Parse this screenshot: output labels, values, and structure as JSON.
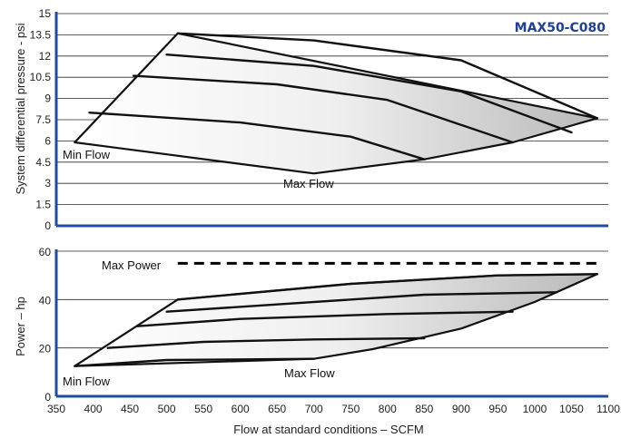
{
  "chart_data": [
    {
      "type": "area",
      "model_label": "MAX50-C080",
      "ylabel": "System differential pressure - psi",
      "ylim": [
        0,
        15
      ],
      "yticks": [
        "0",
        "1.5",
        "3",
        "4.5",
        "6",
        "7.5",
        "9",
        "10.5",
        "12",
        "13.5",
        "15"
      ],
      "xlim": [
        350,
        1100
      ],
      "grid": true,
      "envelope": {
        "boundary": [
          [
            375,
            5.9
          ],
          [
            515,
            13.6
          ],
          [
            1085,
            7.6
          ],
          [
            970,
            5.9
          ],
          [
            850,
            4.7
          ],
          [
            700,
            3.7
          ],
          [
            375,
            5.9
          ]
        ]
      },
      "series": [
        {
          "values": [
            [
              395,
              8.0
            ],
            [
              600,
              7.3
            ],
            [
              750,
              6.3
            ],
            [
              850,
              4.7
            ]
          ]
        },
        {
          "values": [
            [
              455,
              10.6
            ],
            [
              650,
              10.0
            ],
            [
              800,
              8.9
            ],
            [
              970,
              5.9
            ]
          ]
        },
        {
          "values": [
            [
              500,
              12.1
            ],
            [
              700,
              11.3
            ],
            [
              900,
              9.5
            ],
            [
              1050,
              6.6
            ]
          ]
        },
        {
          "values": [
            [
              515,
              13.6
            ],
            [
              700,
              13.1
            ],
            [
              900,
              11.7
            ],
            [
              1085,
              7.6
            ]
          ]
        }
      ],
      "annotations": {
        "min_flow": "Min Flow",
        "max_flow": "Max Flow"
      },
      "annotation_points": {
        "min_flow": [
          375,
          5.9
        ],
        "max_flow": [
          700,
          3.7
        ]
      }
    },
    {
      "type": "area",
      "ylabel": "Power – hp",
      "xlabel": "Flow at standard conditions – SCFM",
      "ylim": [
        0,
        60
      ],
      "yticks": [
        "0",
        "20",
        "40",
        "60"
      ],
      "xlim": [
        350,
        1100
      ],
      "xticks": [
        "350",
        "400",
        "450",
        "500",
        "550",
        "600",
        "650",
        "700",
        "750",
        "800",
        "850",
        "900",
        "950",
        "1000",
        "1050",
        "1100"
      ],
      "grid": true,
      "max_power": {
        "label": "Max Power",
        "value": 55,
        "x_range": [
          515,
          1085
        ]
      },
      "envelope": {
        "boundary": [
          [
            375,
            12.5
          ],
          [
            515,
            40.0
          ],
          [
            750,
            46.5
          ],
          [
            950,
            50.0
          ],
          [
            1085,
            50.5
          ],
          [
            1000,
            39.0
          ],
          [
            900,
            28.0
          ],
          [
            780,
            19.5
          ],
          [
            700,
            15.5
          ],
          [
            375,
            12.5
          ]
        ]
      },
      "series": [
        {
          "values": [
            [
              375,
              12.5
            ],
            [
              500,
              15.0
            ],
            [
              700,
              15.5
            ]
          ]
        },
        {
          "values": [
            [
              420,
              20.0
            ],
            [
              550,
              22.5
            ],
            [
              700,
              23.5
            ],
            [
              850,
              24.0
            ]
          ]
        },
        {
          "values": [
            [
              460,
              29.0
            ],
            [
              600,
              32.0
            ],
            [
              800,
              34.0
            ],
            [
              970,
              35.0
            ]
          ]
        },
        {
          "values": [
            [
              500,
              35.0
            ],
            [
              650,
              38.0
            ],
            [
              850,
              42.0
            ],
            [
              1030,
              43.0
            ]
          ]
        },
        {
          "values": [
            [
              515,
              40.0
            ],
            [
              750,
              46.5
            ],
            [
              950,
              50.0
            ],
            [
              1085,
              50.5
            ]
          ]
        }
      ],
      "annotations": {
        "min_flow": "Min Flow",
        "max_flow": "Max Flow"
      },
      "annotation_points": {
        "min_flow": [
          375,
          12.5
        ],
        "max_flow": [
          700,
          15.5
        ]
      }
    }
  ],
  "colors": {
    "axis": "#1f4e9e",
    "model_label": "#1f3f9a",
    "curve": "#111111",
    "grid": "#2a2a2a",
    "gradient_light": "#ffffff",
    "gradient_dark": "#b9b9b9"
  }
}
